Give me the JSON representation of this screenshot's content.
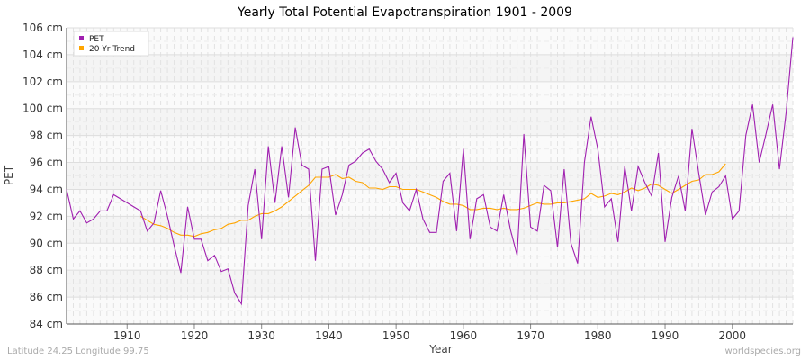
{
  "chart_data": {
    "type": "line",
    "title": "Yearly Total Potential Evapotranspiration 1901 - 2009",
    "xlabel": "Year",
    "ylabel": "PET",
    "xlim": [
      1901,
      2009
    ],
    "ylim": [
      84,
      106
    ],
    "y_unit": "cm",
    "x_ticks": [
      1910,
      1920,
      1930,
      1940,
      1950,
      1960,
      1970,
      1980,
      1990,
      2000
    ],
    "y_ticks": [
      "84 cm",
      "86 cm",
      "88 cm",
      "90 cm",
      "92 cm",
      "94 cm",
      "96 cm",
      "98 cm",
      "100 cm",
      "102 cm",
      "104 cm",
      "106 cm"
    ],
    "grid": true,
    "legend_position": "top-left",
    "series": [
      {
        "name": "PET",
        "color": "#a020b0",
        "x_start": 1901,
        "values": [
          94.0,
          91.8,
          92.4,
          91.5,
          91.8,
          92.4,
          92.4,
          93.6,
          93.3,
          93.0,
          92.7,
          92.4,
          90.9,
          91.5,
          93.9,
          92.0,
          89.8,
          87.8,
          92.7,
          90.3,
          90.3,
          88.7,
          89.1,
          87.9,
          88.1,
          86.3,
          85.5,
          92.8,
          95.5,
          90.3,
          97.2,
          93.0,
          97.2,
          93.4,
          98.6,
          95.8,
          95.5,
          88.7,
          95.5,
          95.7,
          92.1,
          93.6,
          95.8,
          96.1,
          96.7,
          97.0,
          96.1,
          95.5,
          94.5,
          95.2,
          93.0,
          92.4,
          94.0,
          91.8,
          90.8,
          90.8,
          94.6,
          95.2,
          90.9,
          97.0,
          90.3,
          93.3,
          93.6,
          91.2,
          90.9,
          93.6,
          91.0,
          89.1,
          98.1,
          91.2,
          90.9,
          94.3,
          93.9,
          89.7,
          95.5,
          90.0,
          88.5,
          96.0,
          99.4,
          97.0,
          92.7,
          93.3,
          90.1,
          95.7,
          92.4,
          95.7,
          94.5,
          93.5,
          96.7,
          90.1,
          93.4,
          95.0,
          92.4,
          98.5,
          95.2,
          92.1,
          93.8,
          94.2,
          95.0,
          91.8,
          92.4,
          98.0,
          100.3,
          96.0,
          98.1,
          100.3,
          95.5,
          99.7,
          105.3
        ]
      },
      {
        "name": "20 Yr Trend",
        "color": "#ffa500",
        "x_start": 1912,
        "values": [
          92.0,
          91.7,
          91.4,
          91.3,
          91.1,
          90.8,
          90.6,
          90.6,
          90.5,
          90.7,
          90.8,
          91.0,
          91.1,
          91.4,
          91.5,
          91.7,
          91.7,
          92.0,
          92.2,
          92.2,
          92.4,
          92.7,
          93.1,
          93.5,
          93.9,
          94.3,
          94.9,
          94.9,
          94.9,
          95.1,
          94.8,
          94.9,
          94.6,
          94.5,
          94.1,
          94.1,
          94.0,
          94.2,
          94.2,
          94.0,
          94.0,
          94.0,
          93.8,
          93.6,
          93.4,
          93.1,
          92.9,
          92.9,
          92.8,
          92.5,
          92.5,
          92.6,
          92.6,
          92.5,
          92.6,
          92.5,
          92.5,
          92.6,
          92.8,
          93.0,
          92.9,
          92.9,
          93.0,
          93.0,
          93.1,
          93.2,
          93.3,
          93.7,
          93.4,
          93.5,
          93.7,
          93.6,
          93.8,
          94.1,
          93.9,
          94.1,
          94.4,
          94.3,
          94.0,
          93.7,
          94.0,
          94.3,
          94.6,
          94.7,
          95.1,
          95.1,
          95.3,
          95.9
        ]
      }
    ]
  },
  "footer": {
    "left": "Latitude 24.25 Longitude 99.75",
    "right": "worldspecies.org"
  }
}
